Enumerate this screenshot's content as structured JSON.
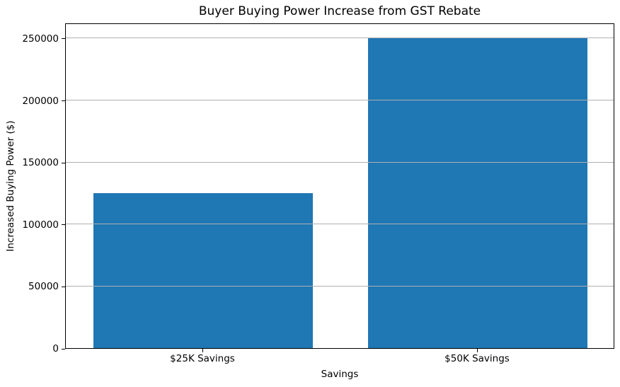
{
  "chart_data": {
    "type": "bar",
    "title": "Buyer Buying Power Increase from GST Rebate",
    "xlabel": "Savings",
    "ylabel": "Increased Buying Power ($)",
    "categories": [
      "$25K Savings",
      "$50K Savings"
    ],
    "values": [
      125000,
      250000
    ],
    "ylim": [
      0,
      262500
    ],
    "yticks": [
      0,
      50000,
      100000,
      150000,
      200000,
      250000
    ],
    "bar_color": "#1f77b4",
    "bar_width_fraction": 0.8,
    "grid": {
      "axis": "y",
      "color": "#b0b0b0",
      "drawn_over_bars": true
    },
    "legend": "none",
    "background": "#ffffff",
    "spine_color": "#000000",
    "text_color": "#000000"
  }
}
